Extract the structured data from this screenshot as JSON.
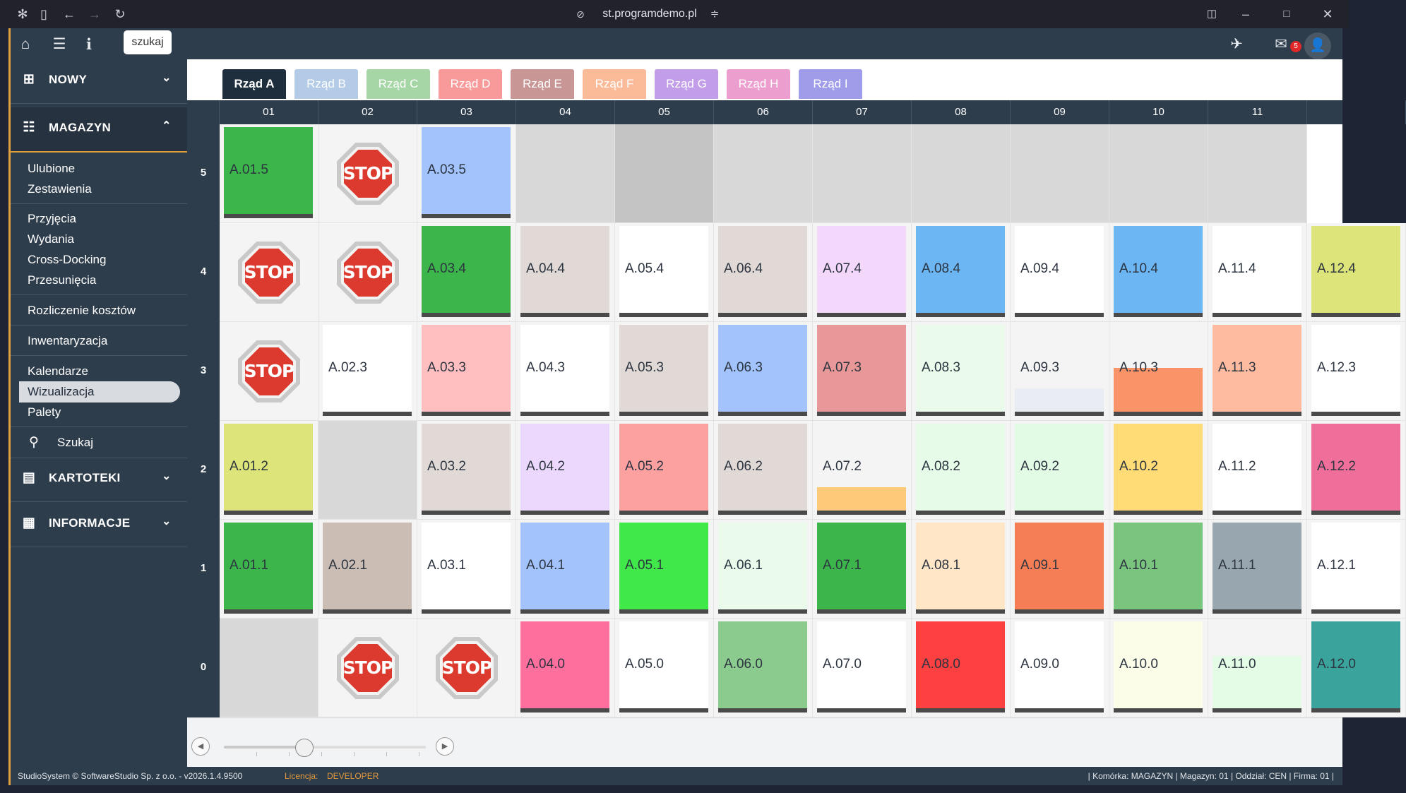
{
  "browser": {
    "url": "st.programdemo.pl"
  },
  "topbar": {
    "search_label": "szukaj",
    "mail_count": "5"
  },
  "sidebar": {
    "sections": {
      "nowy": "NOWY",
      "magazyn": "MAGAZYN",
      "kartoteki": "KARTOTEKI",
      "informacje": "INFORMACJE"
    },
    "items": {
      "ulubione": "Ulubione",
      "zestawienia": "Zestawienia",
      "przyjecia": "Przyjęcia",
      "wydania": "Wydania",
      "crossdocking": "Cross-Docking",
      "przesuniecia": "Przesunięcia",
      "rozliczenie": "Rozliczenie kosztów",
      "inwentaryzacja": "Inwentaryzacja",
      "kalendarze": "Kalendarze",
      "wizualizacja": "Wizualizacja",
      "palety": "Palety",
      "szukaj": "Szukaj"
    }
  },
  "tabs": [
    {
      "label": "Rząd A",
      "color": "#1f2e3c"
    },
    {
      "label": "Rząd B",
      "color": "#b3cbe6"
    },
    {
      "label": "Rząd C",
      "color": "#a6d6a6"
    },
    {
      "label": "Rząd D",
      "color": "#f99a9a"
    },
    {
      "label": "Rząd E",
      "color": "#c99696"
    },
    {
      "label": "Rząd F",
      "color": "#fbbb98"
    },
    {
      "label": "Rząd G",
      "color": "#c29de8"
    },
    {
      "label": "Rząd H",
      "color": "#ec9fcf"
    },
    {
      "label": "Rząd I",
      "color": "#9f9cea"
    }
  ],
  "columns": [
    "01",
    "02",
    "03",
    "04",
    "05",
    "06",
    "07",
    "08",
    "09",
    "10",
    "11",
    ""
  ],
  "rows": [
    {
      "level": "5",
      "cells": [
        {
          "type": "slot",
          "label": "A.01.5",
          "color": "#3cb64a"
        },
        {
          "type": "stop",
          "text": "STOP"
        },
        {
          "type": "slot",
          "label": "A.03.5",
          "color": "#a2c3fb"
        },
        {
          "type": "empty"
        },
        {
          "type": "dark"
        },
        {
          "type": "empty"
        },
        {
          "type": "empty"
        },
        {
          "type": "empty"
        },
        {
          "type": "empty"
        },
        {
          "type": "empty"
        },
        {
          "type": "empty"
        }
      ]
    },
    {
      "level": "4",
      "cells": [
        {
          "type": "stop",
          "text": "STOP"
        },
        {
          "type": "stop",
          "text": "STOP"
        },
        {
          "type": "slot",
          "label": "A.03.4",
          "color": "#3cb64a"
        },
        {
          "type": "slot",
          "label": "A.04.4",
          "color": "#e1d9d5"
        },
        {
          "type": "slot",
          "label": "A.05.4",
          "color": "#ffffff"
        },
        {
          "type": "slot",
          "label": "A.06.4",
          "color": "#e1d9d5"
        },
        {
          "type": "slot",
          "label": "A.07.4",
          "color": "#f4d8fb"
        },
        {
          "type": "slot",
          "label": "A.08.4",
          "color": "#6cb6f4"
        },
        {
          "type": "slot",
          "label": "A.09.4",
          "color": "#ffffff"
        },
        {
          "type": "slot",
          "label": "A.10.4",
          "color": "#6cb6f4"
        },
        {
          "type": "slot",
          "label": "A.11.4",
          "color": "#ffffff"
        },
        {
          "type": "slot",
          "label": "A.12.4",
          "color": "#dde47a"
        }
      ]
    },
    {
      "level": "3",
      "cells": [
        {
          "type": "stop",
          "text": "STOP"
        },
        {
          "type": "slot",
          "label": "A.02.3",
          "color": "#ffffff"
        },
        {
          "type": "slot",
          "label": "A.03.3",
          "color": "#ffbfc0"
        },
        {
          "type": "slot",
          "label": "A.04.3",
          "color": "#ffffff"
        },
        {
          "type": "slot",
          "label": "A.05.3",
          "color": "#e1d9d5"
        },
        {
          "type": "slot",
          "label": "A.06.3",
          "color": "#a2c3fb"
        },
        {
          "type": "slot",
          "label": "A.07.3",
          "color": "#e89898"
        },
        {
          "type": "slot",
          "label": "A.08.3",
          "color": "#eafbec"
        },
        {
          "type": "slot",
          "label": "A.09.3",
          "color": "#f4f4f4",
          "fill_color": "#e9edf3",
          "fill_level": 0.27
        },
        {
          "type": "slot",
          "label": "A.10.3",
          "color": "#f4f4f4",
          "fill_color": "#fa9468",
          "fill_level": 0.5
        },
        {
          "type": "slot",
          "label": "A.11.3",
          "color": "#ffbba0"
        },
        {
          "type": "slot",
          "label": "A.12.3",
          "color": "#ffffff"
        }
      ]
    },
    {
      "level": "2",
      "cells": [
        {
          "type": "slot",
          "label": "A.01.2",
          "color": "#dde47a"
        },
        {
          "type": "empty"
        },
        {
          "type": "slot",
          "label": "A.03.2",
          "color": "#e1d9d5"
        },
        {
          "type": "slot",
          "label": "A.04.2",
          "color": "#ebd8fc"
        },
        {
          "type": "slot",
          "label": "A.05.2",
          "color": "#fca0a0"
        },
        {
          "type": "slot",
          "label": "A.06.2",
          "color": "#e1d9d5"
        },
        {
          "type": "slot",
          "label": "A.07.2",
          "color": "#f4f4f4",
          "fill_color": "#ffc97a",
          "fill_level": 0.27
        },
        {
          "type": "slot",
          "label": "A.08.2",
          "color": "#e6fbe8"
        },
        {
          "type": "slot",
          "label": "A.09.2",
          "color": "#e2fbe4"
        },
        {
          "type": "slot",
          "label": "A.10.2",
          "color": "#ffdc76"
        },
        {
          "type": "slot",
          "label": "A.11.2",
          "color": "#ffffff"
        },
        {
          "type": "slot",
          "label": "A.12.2",
          "color": "#ef6f9a"
        }
      ]
    },
    {
      "level": "1",
      "cells": [
        {
          "type": "slot",
          "label": "A.01.1",
          "color": "#3cb64a"
        },
        {
          "type": "slot",
          "label": "A.02.1",
          "color": "#cbbcb4"
        },
        {
          "type": "slot",
          "label": "A.03.1",
          "color": "#ffffff"
        },
        {
          "type": "slot",
          "label": "A.04.1",
          "color": "#a2c3fb"
        },
        {
          "type": "slot",
          "label": "A.05.1",
          "color": "#40e84a"
        },
        {
          "type": "slot",
          "label": "A.06.1",
          "color": "#eafbec"
        },
        {
          "type": "slot",
          "label": "A.07.1",
          "color": "#3cb64a"
        },
        {
          "type": "slot",
          "label": "A.08.1",
          "color": "#ffe6c6"
        },
        {
          "type": "slot",
          "label": "A.09.1",
          "color": "#f57e54"
        },
        {
          "type": "slot",
          "label": "A.10.1",
          "color": "#7ac57e"
        },
        {
          "type": "slot",
          "label": "A.11.1",
          "color": "#98a6b0"
        },
        {
          "type": "slot",
          "label": "A.12.1",
          "color": "#ffffff"
        }
      ]
    },
    {
      "level": "0",
      "cells": [
        {
          "type": "empty"
        },
        {
          "type": "stop",
          "text": "STOP"
        },
        {
          "type": "stop",
          "text": "STOP"
        },
        {
          "type": "slot",
          "label": "A.04.0",
          "color": "#ff6f9d"
        },
        {
          "type": "slot",
          "label": "A.05.0",
          "color": "#ffffff"
        },
        {
          "type": "slot",
          "label": "A.06.0",
          "color": "#8ccb8e"
        },
        {
          "type": "slot",
          "label": "A.07.0",
          "color": "#ffffff"
        },
        {
          "type": "slot",
          "label": "A.08.0",
          "color": "#ff4040"
        },
        {
          "type": "slot",
          "label": "A.09.0",
          "color": "#ffffff"
        },
        {
          "type": "slot",
          "label": "A.10.0",
          "color": "#fbfde8"
        },
        {
          "type": "slot",
          "label": "A.11.0",
          "color": "#f4f4f4",
          "fill_color": "#e4fbe6",
          "fill_level": 0.6
        },
        {
          "type": "slot",
          "label": "A.12.0",
          "color": "#3aa39c"
        }
      ]
    }
  ],
  "scroll": {
    "position": 0.4
  },
  "footer": {
    "copyright": "StudioSystem © SoftwareStudio Sp. z o.o. - v2026.1.4.9500",
    "license_label": "Licencja:",
    "license_value": "DEVELOPER",
    "status": "| Komórka: MAGAZYN | Magazyn: 01 | Oddział: CEN | Firma: 01 |"
  }
}
